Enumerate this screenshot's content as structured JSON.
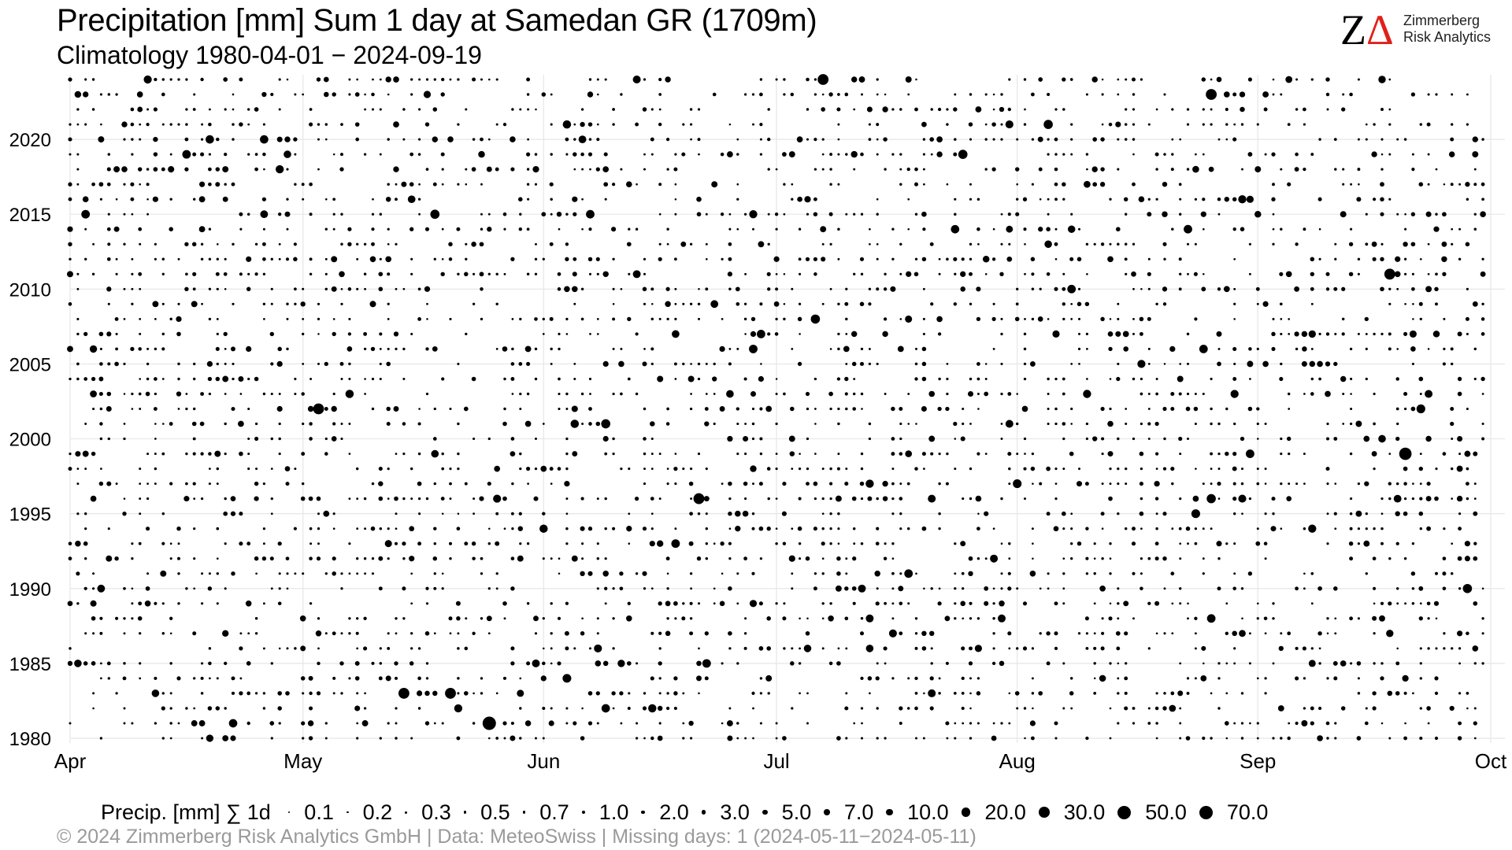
{
  "header": {
    "title": "Precipitation [mm] Sum 1 day at Samedan  GR (1709m)",
    "subtitle": "Climatology 1980-04-01 − 2024-09-19"
  },
  "logo": {
    "mark_z": "Z",
    "mark_delta": "Δ",
    "line1": "Zimmerberg",
    "line2": "Risk Analytics",
    "accent_color": "#e0201b"
  },
  "chart_data": {
    "type": "scatter",
    "title": "Precipitation [mm] Sum 1 day at Samedan  GR (1709m)",
    "subtitle": "Climatology 1980-04-01 − 2024-09-19",
    "x_axis": {
      "type": "date (day of season)",
      "range": [
        "04-01",
        "10-01"
      ],
      "ticks": [
        {
          "date": "04-01",
          "label": "Apr"
        },
        {
          "date": "05-01",
          "label": "May"
        },
        {
          "date": "06-01",
          "label": "Jun"
        },
        {
          "date": "07-01",
          "label": "Jul"
        },
        {
          "date": "08-01",
          "label": "Aug"
        },
        {
          "date": "09-01",
          "label": "Sep"
        },
        {
          "date": "10-01",
          "label": "Oct"
        }
      ]
    },
    "y_axis": {
      "type": "year",
      "range": [
        1980,
        2024
      ],
      "ticks": [
        1980,
        1985,
        1990,
        1995,
        2000,
        2005,
        2010,
        2015,
        2020
      ]
    },
    "grid": true,
    "legend_position": "bottom",
    "size_legend": {
      "title": "Precip. [mm] ∑ 1d",
      "levels": [
        "0.1",
        "0.2",
        "0.3",
        "0.5",
        "0.7",
        "1.0",
        "2.0",
        "3.0",
        "5.0",
        "7.0",
        "10.0",
        "20.0",
        "30.0",
        "50.0",
        "70.0"
      ]
    },
    "notable_points": [
      {
        "date": "1981-05-25",
        "precip_mm": 50
      },
      {
        "date": "1983-05-14",
        "precip_mm": 30
      },
      {
        "date": "1983-05-20",
        "precip_mm": 30
      },
      {
        "date": "1990-09-28",
        "precip_mm": 20
      },
      {
        "date": "1996-06-21",
        "precip_mm": 30
      },
      {
        "date": "1996-08-26",
        "precip_mm": 20
      },
      {
        "date": "1999-09-20",
        "precip_mm": 40
      },
      {
        "date": "2001-06-09",
        "precip_mm": 20
      },
      {
        "date": "2002-05-03",
        "precip_mm": 30
      },
      {
        "date": "2008-07-06",
        "precip_mm": 20
      },
      {
        "date": "2011-09-18",
        "precip_mm": 30
      },
      {
        "date": "2015-05-18",
        "precip_mm": 20
      },
      {
        "date": "2019-07-25",
        "precip_mm": 20
      },
      {
        "date": "2021-08-05",
        "precip_mm": 20
      },
      {
        "date": "2023-08-26",
        "precip_mm": 30
      },
      {
        "date": "2024-07-07",
        "precip_mm": 30
      },
      {
        "date": "2024-09-05",
        "precip_mm": 10
      }
    ],
    "point_color": "#000000",
    "grid_color": "#e6e6e6"
  },
  "footer": {
    "text": "©  2024 Zimmerberg Risk Analytics GmbH | Data: MeteoSwiss | Missing days: 1 (2024-05-11−2024-05-11)"
  }
}
